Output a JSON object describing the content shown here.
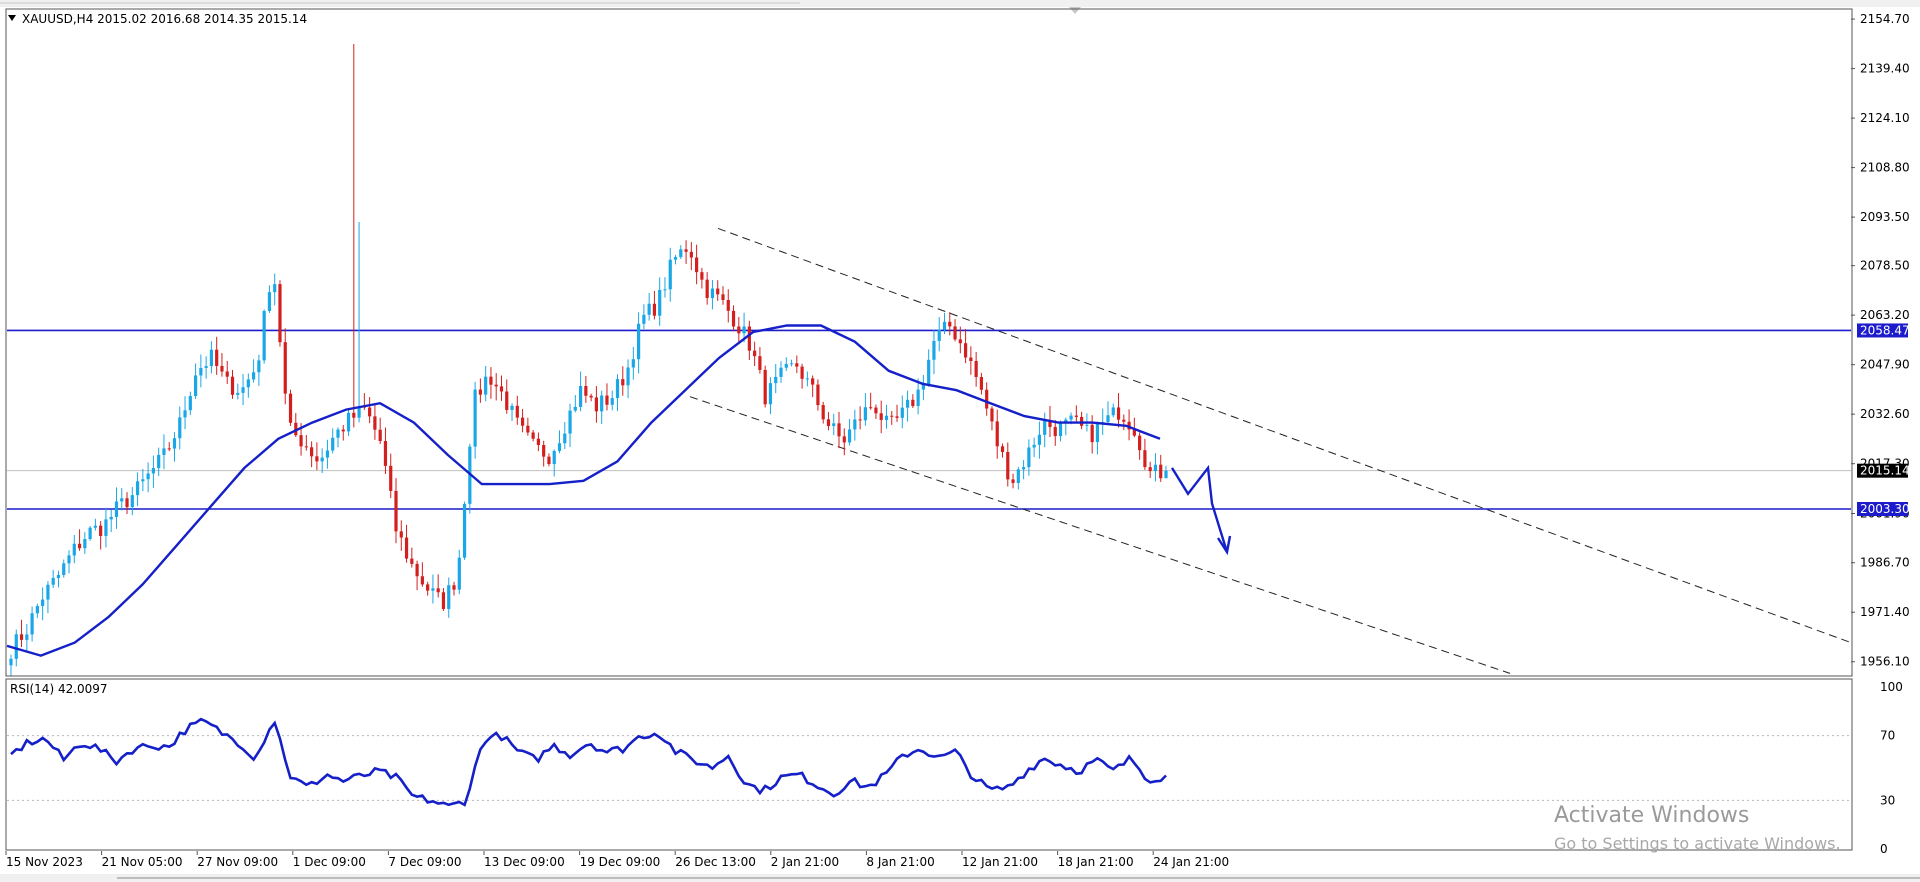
{
  "header": {
    "symbol_line": "XAUUSD,H4  2015.02 2016.68 2014.35 2015.14"
  },
  "rsi_header": "RSI(14) 42.0097",
  "watermark": {
    "line1": "Activate Windows",
    "line2": "Go to Settings to activate Windows."
  },
  "colors": {
    "bull": "#1aa7e8",
    "bear": "#d41f1f",
    "ma": "#1520c8",
    "level": "#1c1ccc",
    "price_tag_bg": "#000000",
    "level_tag_bg": "#1c1ccc"
  },
  "chart_data": {
    "type": "candlestick",
    "symbol": "XAUUSD",
    "timeframe": "H4",
    "ohlc_last": {
      "open": 2015.02,
      "high": 2016.68,
      "low": 2014.35,
      "close": 2015.14
    },
    "y_axis": {
      "ticks": [
        "2154.70",
        "2139.40",
        "2124.10",
        "2108.80",
        "2093.50",
        "2078.50",
        "2063.20",
        "2047.90",
        "2032.60",
        "2017.30",
        "2001.90",
        "1986.70",
        "1971.40",
        "1956.10"
      ],
      "range": [
        1952.0,
        2157.5
      ]
    },
    "x_axis": {
      "labels": [
        "15 Nov 2023",
        "21 Nov 05:00",
        "27 Nov 09:00",
        "1 Dec 09:00",
        "7 Dec 09:00",
        "13 Dec 09:00",
        "19 Dec 09:00",
        "26 Dec 13:00",
        "2 Jan 21:00",
        "8 Jan 21:00",
        "12 Jan 21:00",
        "18 Jan 21:00",
        "24 Jan 21:00"
      ]
    },
    "levels": [
      {
        "name": "resistance",
        "value": 2058.47,
        "label": "2058.47"
      },
      {
        "name": "support",
        "value": 2003.3,
        "label": "2003.30"
      },
      {
        "name": "current",
        "value": 2015.14,
        "label": "2015.14"
      }
    ],
    "price_anchors": [
      1960,
      1966,
      1976,
      1982,
      1990,
      1996,
      1998,
      2004,
      2008,
      2014,
      2020,
      2030,
      2046,
      2050,
      2042,
      2040,
      2048,
      2080,
      2028,
      2024,
      2018,
      2026,
      2031,
      2034,
      2024,
      1997,
      1986,
      1979,
      1974,
      1983,
      2036,
      2045,
      2038,
      2028,
      2022,
      2020,
      2030,
      2040,
      2035,
      2038,
      2046,
      2062,
      2067,
      2080,
      2085,
      2072,
      2068,
      2062,
      2054,
      2038,
      2044,
      2048,
      2040,
      2030,
      2024,
      2031,
      2036,
      2028,
      2033,
      2040,
      2056,
      2060,
      2052,
      2040,
      2024,
      2012,
      2020,
      2030,
      2028,
      2030,
      2026,
      2030,
      2034,
      2028,
      2014,
      2015
    ],
    "ma_anchors": [
      1961,
      1958,
      1962,
      1970,
      1980,
      1992,
      2004,
      2016,
      2025,
      2030,
      2034,
      2036,
      2030,
      2020,
      2011,
      2011,
      2011,
      2012,
      2018,
      2030,
      2040,
      2050,
      2058,
      2060,
      2060,
      2055,
      2046,
      2042,
      2040,
      2036,
      2032,
      2030,
      2030,
      2029,
      2025
    ],
    "rsi": {
      "period": 14,
      "value": 42.0097,
      "levels": [
        100,
        70,
        30,
        0
      ],
      "anchors": [
        58,
        66,
        68,
        55,
        66,
        62,
        54,
        62,
        64,
        63,
        74,
        79,
        72,
        66,
        56,
        81,
        44,
        38,
        46,
        42,
        45,
        48,
        44,
        32,
        30,
        26,
        30,
        68,
        70,
        60,
        55,
        64,
        58,
        66,
        60,
        62,
        70,
        72,
        60,
        55,
        50,
        58,
        40,
        36,
        44,
        46,
        40,
        34,
        42,
        38,
        46,
        58,
        62,
        56,
        60,
        44,
        36,
        38,
        48,
        56,
        52,
        48,
        55,
        48,
        56,
        43,
        45
      ]
    },
    "annotations": [
      {
        "type": "descending channel",
        "description": "dashed parallel trend lines"
      },
      {
        "type": "projection arrow",
        "description": "downward move from 2015 toward 1990"
      }
    ]
  }
}
